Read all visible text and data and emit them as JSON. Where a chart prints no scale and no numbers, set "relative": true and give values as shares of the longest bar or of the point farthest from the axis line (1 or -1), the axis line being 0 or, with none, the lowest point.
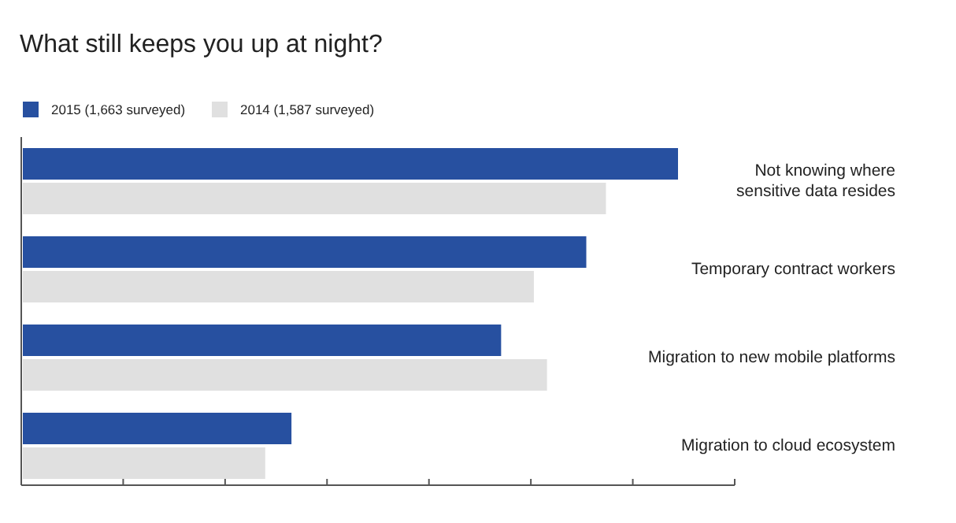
{
  "chart_data": {
    "type": "bar",
    "orientation": "horizontal",
    "relative": true,
    "title": "What still keeps you up at night?",
    "categories": [
      "Not knowing where\nsensitive data resides",
      "Temporary contract workers",
      "Migration to new mobile platforms",
      "Migration to cloud ecosystem"
    ],
    "series": [
      {
        "name": "2015 (1,663 surveyed)",
        "color": "#2750a0",
        "values": [
          1,
          0.86,
          0.73,
          0.41
        ]
      },
      {
        "name": "2014 (1,587 surveyed)",
        "color": "#e0e0e0",
        "values": [
          0.89,
          0.78,
          0.8,
          0.37
        ]
      }
    ],
    "legend": "top left"
  }
}
